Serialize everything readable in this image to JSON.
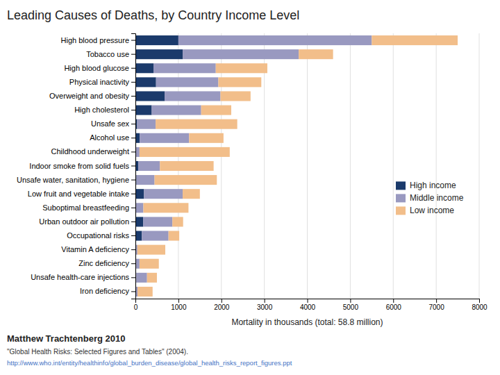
{
  "chart_data": {
    "type": "bar",
    "orientation": "horizontal",
    "stacked": true,
    "title": "Leading Causes of Deaths, by Country Income Level",
    "categories": [
      "High blood pressure",
      "Tobacco use",
      "High blood glucose",
      "Physical inactivity",
      "Overweight and obesity",
      "High cholesterol",
      "Unsafe sex",
      "Alcohol use",
      "Childhood underweight",
      "Indoor smoke from solid fuels",
      "Unsafe water, sanitation, hygiene",
      "Low fruit and vegetable intake",
      "Suboptimal breastfeeding",
      "Urban outdoor air pollution",
      "Occupational risks",
      "Vitamin A deficiency",
      "Zinc deficiency",
      "Unsafe health-care injections",
      "Iron deficiency"
    ],
    "series": [
      {
        "name": "High income",
        "color": "#1b3a6b",
        "values": [
          1000,
          1100,
          420,
          480,
          680,
          380,
          40,
          100,
          5,
          70,
          25,
          200,
          5,
          180,
          150,
          5,
          5,
          20,
          5
        ]
      },
      {
        "name": "Middle income",
        "color": "#9999c0",
        "values": [
          4500,
          2700,
          1450,
          1450,
          1300,
          1150,
          430,
          1150,
          90,
          500,
          420,
          900,
          180,
          680,
          620,
          40,
          90,
          250,
          45
        ]
      },
      {
        "name": "Low income",
        "color": "#f2be8a",
        "values": [
          2000,
          800,
          1200,
          1000,
          700,
          700,
          1900,
          800,
          2100,
          1250,
          1450,
          400,
          1050,
          250,
          250,
          650,
          450,
          230,
          350
        ]
      }
    ],
    "xlabel": "Mortality in thousands (total: 58.8 million)",
    "xlim": [
      0,
      8000
    ],
    "xticks": [
      0,
      1000,
      2000,
      3000,
      4000,
      5000,
      6000,
      7000,
      8000
    ],
    "grid": true,
    "legend": "right",
    "annotations": [
      "Matthew Trachtenberg 2010",
      "\"Global Health Risks: Selected Figures and Tables\"  (2004).",
      "http://www.who.int/entity/healthinfo/global_burden_disease/global_health_risks_report_figures.ppt"
    ]
  }
}
